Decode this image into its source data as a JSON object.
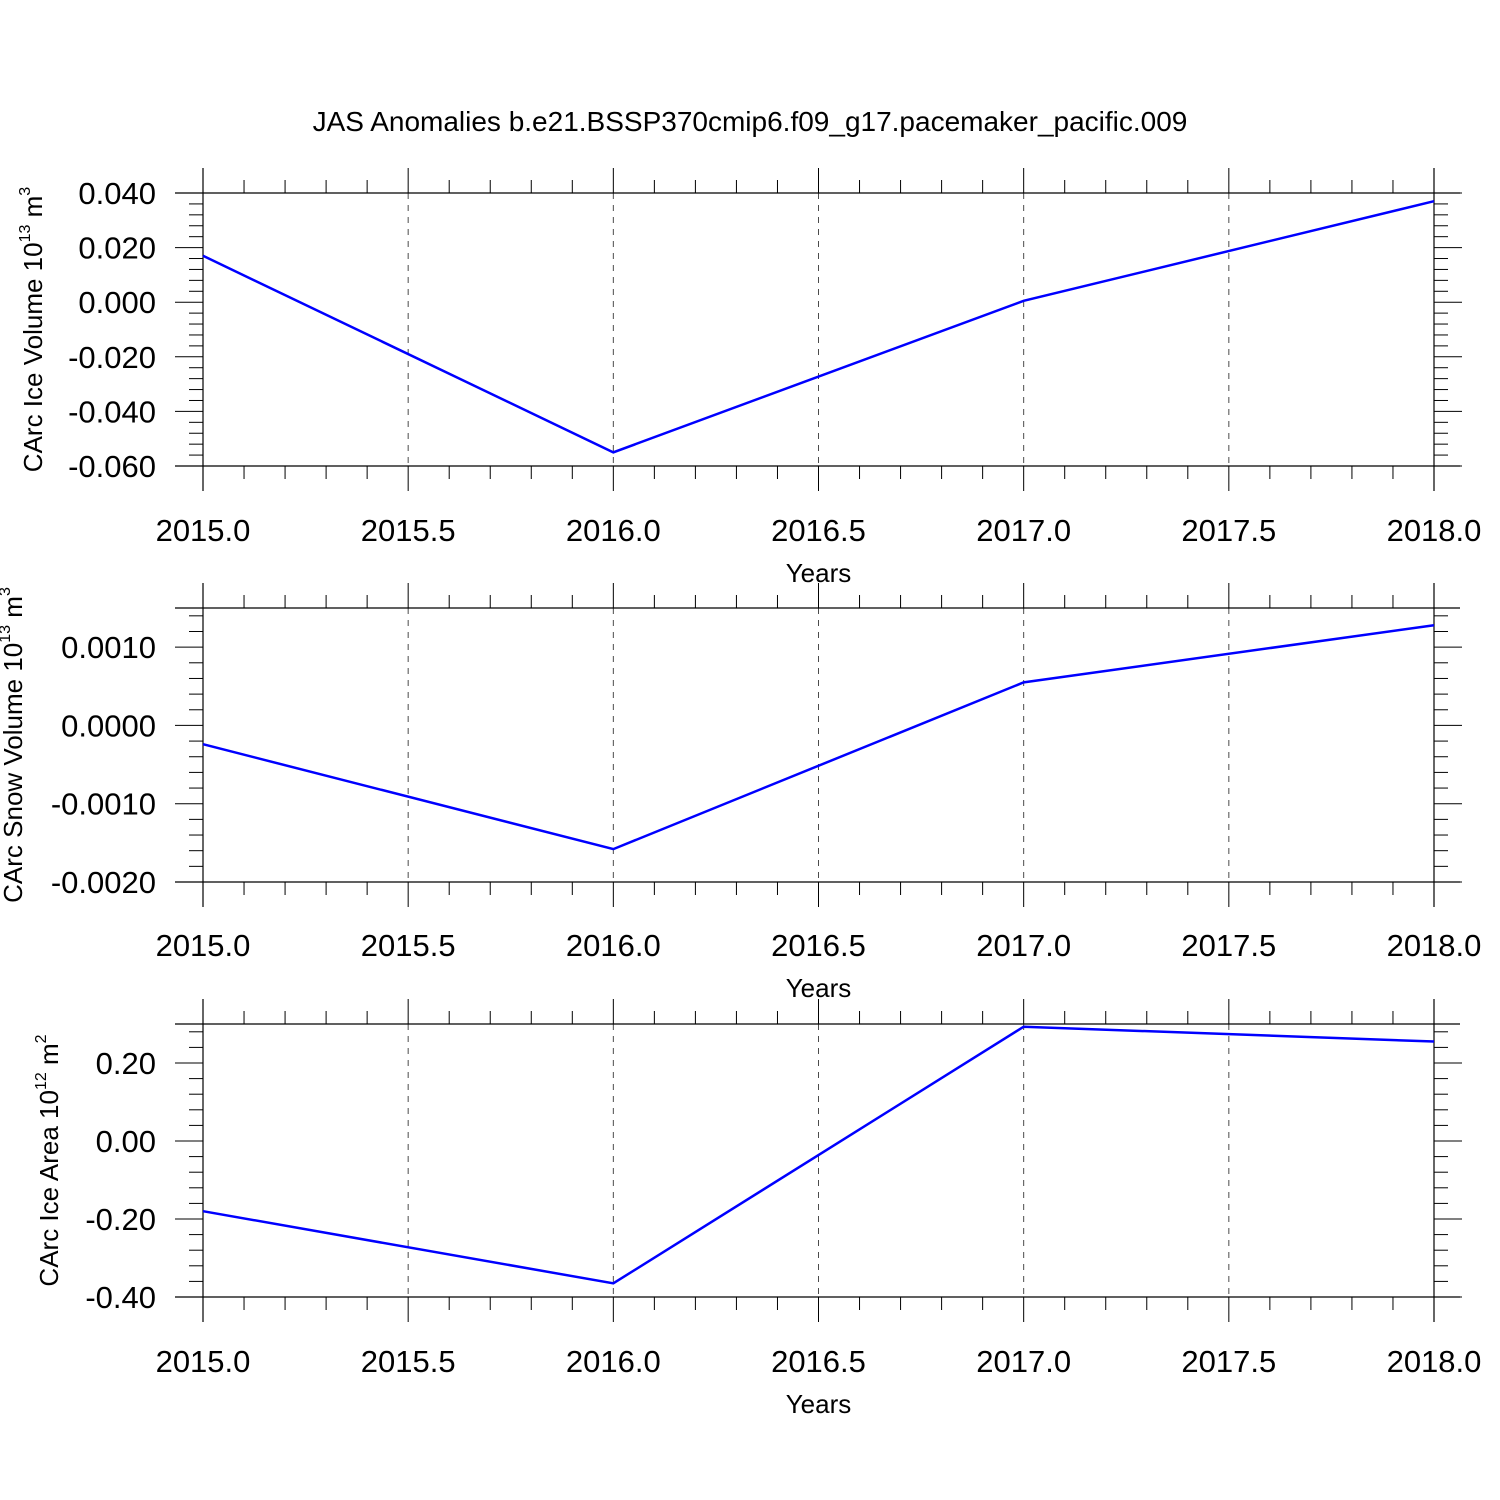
{
  "title": "JAS Anomalies b.e21.BSSP370cmip6.f09_g17.pacemaker_pacific.009",
  "colors": {
    "line": "#0000ff",
    "axis": "#000000",
    "grid": "#000000"
  },
  "chart_data": [
    {
      "type": "line",
      "ylabel": {
        "text": "CArc Ice Volume 10",
        "sup1": "13",
        "unit": " m",
        "sup2": "3"
      },
      "xlabel": "Years",
      "x": [
        2015,
        2016,
        2017,
        2018
      ],
      "series": [
        {
          "values": [
            0.017,
            -0.055,
            0.0005,
            0.037
          ]
        }
      ],
      "xlim": [
        2015,
        2018
      ],
      "ylim": [
        -0.06,
        0.04
      ],
      "xticks": [
        "2015.0",
        "2015.5",
        "2016.0",
        "2016.5",
        "2017.0",
        "2017.5",
        "2018.0"
      ],
      "yticks": [
        "0.040",
        "0.020",
        "0.000",
        "-0.020",
        "-0.040",
        "-0.060"
      ],
      "ytick_values": [
        0.04,
        0.02,
        0.0,
        -0.02,
        -0.04,
        -0.06
      ],
      "grid": "vertical dashed"
    },
    {
      "type": "line",
      "ylabel": {
        "text": "CArc Snow Volume 10",
        "sup1": "13",
        "unit": " m",
        "sup2": "3"
      },
      "xlabel": "Years",
      "x": [
        2015,
        2016,
        2017,
        2018
      ],
      "series": [
        {
          "values": [
            -0.00024,
            -0.00158,
            0.00055,
            0.00128
          ]
        }
      ],
      "xlim": [
        2015,
        2018
      ],
      "ylim": [
        -0.002,
        0.0015
      ],
      "xticks": [
        "2015.0",
        "2015.5",
        "2016.0",
        "2016.5",
        "2017.0",
        "2017.5",
        "2018.0"
      ],
      "yticks": [
        "0.0010",
        "0.0000",
        "-0.0010",
        "-0.0020"
      ],
      "ytick_values": [
        0.001,
        0.0,
        -0.001,
        -0.002
      ],
      "grid": "vertical dashed"
    },
    {
      "type": "line",
      "ylabel": {
        "text": "CArc Ice Area 10",
        "sup1": "12",
        "unit": " m",
        "sup2": "2"
      },
      "xlabel": "Years",
      "x": [
        2015,
        2016,
        2017,
        2018
      ],
      "series": [
        {
          "values": [
            -0.18,
            -0.365,
            0.293,
            0.255
          ]
        }
      ],
      "xlim": [
        2015,
        2018
      ],
      "ylim": [
        -0.4,
        0.3
      ],
      "xticks": [
        "2015.0",
        "2015.5",
        "2016.0",
        "2016.5",
        "2017.0",
        "2017.5",
        "2018.0"
      ],
      "yticks": [
        "0.20",
        "0.00",
        "-0.20",
        "-0.40"
      ],
      "ytick_values": [
        0.2,
        0.0,
        -0.2,
        -0.4
      ],
      "grid": "vertical dashed"
    }
  ]
}
